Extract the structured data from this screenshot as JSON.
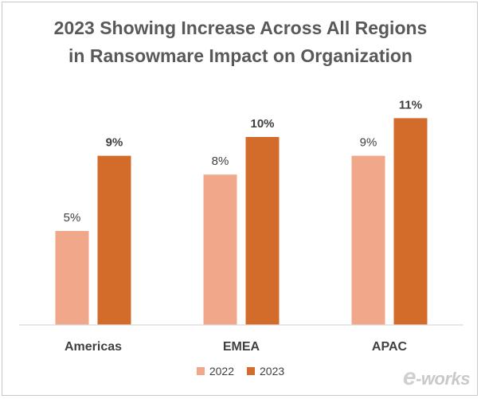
{
  "chart_data": {
    "type": "bar",
    "title_lines": [
      "2023 Showing Increase Across All Regions",
      "in Ransowmare Impact on Organization"
    ],
    "categories": [
      "Americas",
      "EMEA",
      "APAC"
    ],
    "series": [
      {
        "name": "2022",
        "values": [
          5,
          8,
          9
        ],
        "labels": [
          "5%",
          "8%",
          "9%"
        ],
        "color": "#F1A78A",
        "label_bold": false
      },
      {
        "name": "2023",
        "values": [
          9,
          10,
          11
        ],
        "labels": [
          "9%",
          "10%",
          "11%"
        ],
        "color": "#D36B2B",
        "label_bold": true
      }
    ],
    "ylim": [
      0,
      12
    ],
    "xlabel": "",
    "ylabel": "",
    "grid": false,
    "legend_position": "bottom"
  },
  "watermark": {
    "prefix": "e",
    "text": "-works"
  },
  "colors": {
    "axis": "#d9d9d9",
    "title": "#595959",
    "label": "#404040"
  }
}
